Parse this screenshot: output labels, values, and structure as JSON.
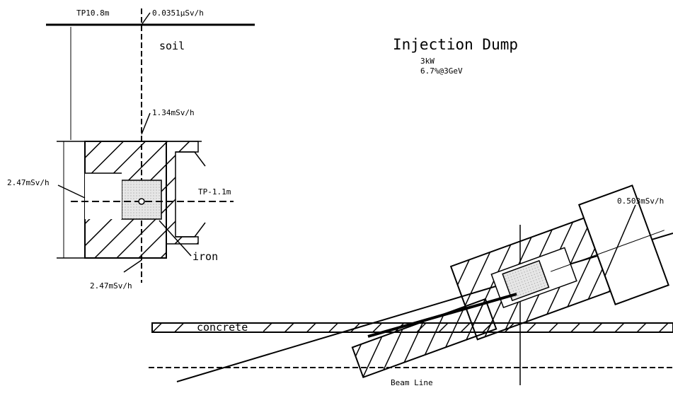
{
  "title": "Injection Dump",
  "specs": {
    "power": "3kW",
    "loss": "6.7%@3GeV"
  },
  "left_section": {
    "top_level": "TP10.8m",
    "top_dose": "0.0351μSv/h",
    "medium": "soil",
    "upper_dose": "1.34mSv/h",
    "side_dose": "2.47mSv/h",
    "beam_level": "TP-1.1m",
    "core": "iron",
    "bottom_dose": "2.47mSv/h"
  },
  "right_section": {
    "dose": "0.503mSv/h",
    "floor": "concrete",
    "beam": "Beam Line"
  }
}
